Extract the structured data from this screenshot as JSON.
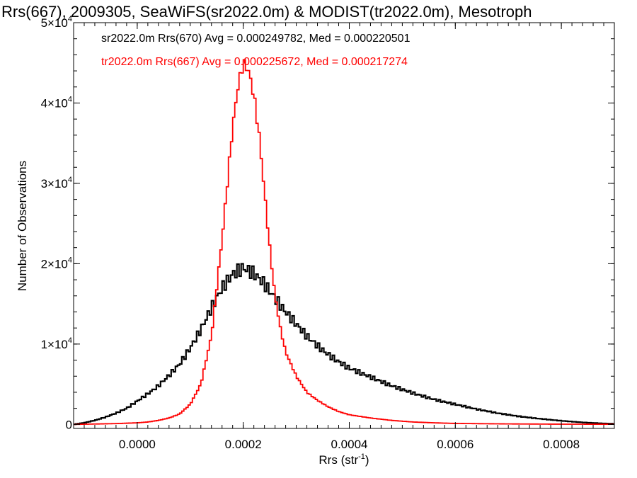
{
  "chart_data": {
    "type": "line",
    "title": "Rrs(667), 2009305, SeaWiFS(sr2022.0m) & MODIST(tr2022.0m), Mesotroph",
    "xlabel": "Rrs (str",
    "xlabel_sup": "-1",
    "xlabel_end": ")",
    "ylabel": "Number of Observations",
    "xlim": [
      -0.00012,
      0.0009
    ],
    "ylim": [
      -500,
      50000
    ],
    "x_ticks": [
      {
        "value": 0.0,
        "label": "0.0000"
      },
      {
        "value": 0.0002,
        "label": "0.0002"
      },
      {
        "value": 0.0004,
        "label": "0.0004"
      },
      {
        "value": 0.0006,
        "label": "0.0006"
      },
      {
        "value": 0.0008,
        "label": "0.0008"
      }
    ],
    "y_ticks": [
      {
        "value": 0,
        "mant": "0",
        "exp": ""
      },
      {
        "value": 10000,
        "mant": "1×10",
        "exp": "4"
      },
      {
        "value": 20000,
        "mant": "2×10",
        "exp": "4"
      },
      {
        "value": 30000,
        "mant": "3×10",
        "exp": "4"
      },
      {
        "value": 40000,
        "mant": "4×10",
        "exp": "4"
      },
      {
        "value": 50000,
        "mant": "5×10",
        "exp": "4"
      }
    ],
    "grid": false,
    "legend_position": "top-left",
    "series": [
      {
        "name": "sr2022.0m Rrs(670) Avg = 0.000249782, Med = 0.000220501",
        "color": "#000000",
        "x": [
          -0.00012,
          -0.0001,
          -8e-05,
          -6e-05,
          -4e-05,
          -2e-05,
          0.0,
          2e-05,
          4e-05,
          6e-05,
          8e-05,
          0.0001,
          0.00012,
          0.00014,
          0.00016,
          0.00018,
          0.0002,
          0.00022,
          0.00024,
          0.00026,
          0.00028,
          0.0003,
          0.00032,
          0.00034,
          0.00036,
          0.00038,
          0.0004,
          0.00044,
          0.00048,
          0.00052,
          0.00056,
          0.0006,
          0.00064,
          0.00068,
          0.00072,
          0.00076,
          0.0008,
          0.00084,
          0.00088,
          0.0009
        ],
        "y": [
          0,
          200,
          500,
          900,
          1400,
          2000,
          2900,
          3800,
          4800,
          6100,
          7500,
          9500,
          11800,
          14500,
          17000,
          18700,
          19500,
          18800,
          17500,
          15700,
          14000,
          12500,
          11000,
          9800,
          8700,
          7800,
          7000,
          5900,
          4800,
          3900,
          3100,
          2500,
          1900,
          1400,
          1000,
          700,
          450,
          250,
          120,
          80
        ]
      },
      {
        "name": "tr2022.0m Rrs(667) Avg = 0.000225672, Med = 0.000217274",
        "color": "#ff0000",
        "x": [
          -0.00012,
          -8e-05,
          -4e-05,
          0.0,
          2e-05,
          4e-05,
          6e-05,
          8e-05,
          0.0001,
          0.00012,
          0.00014,
          0.00016,
          0.00017,
          0.00018,
          0.00019,
          0.0002,
          0.00021,
          0.00022,
          0.00023,
          0.00024,
          0.00025,
          0.00026,
          0.00027,
          0.00028,
          0.0003,
          0.00032,
          0.00034,
          0.00036,
          0.00038,
          0.0004,
          0.00044,
          0.00048,
          0.00052,
          0.00056,
          0.0006,
          0.0007,
          0.0008,
          0.0009
        ],
        "y": [
          0,
          50,
          100,
          200,
          300,
          500,
          800,
          1300,
          2500,
          5000,
          11000,
          23000,
          30000,
          37000,
          42000,
          45000,
          44000,
          41000,
          36000,
          29000,
          22000,
          16000,
          12000,
          9000,
          6000,
          4000,
          3000,
          2200,
          1600,
          1200,
          800,
          500,
          300,
          200,
          120,
          60,
          30,
          20
        ]
      }
    ]
  }
}
